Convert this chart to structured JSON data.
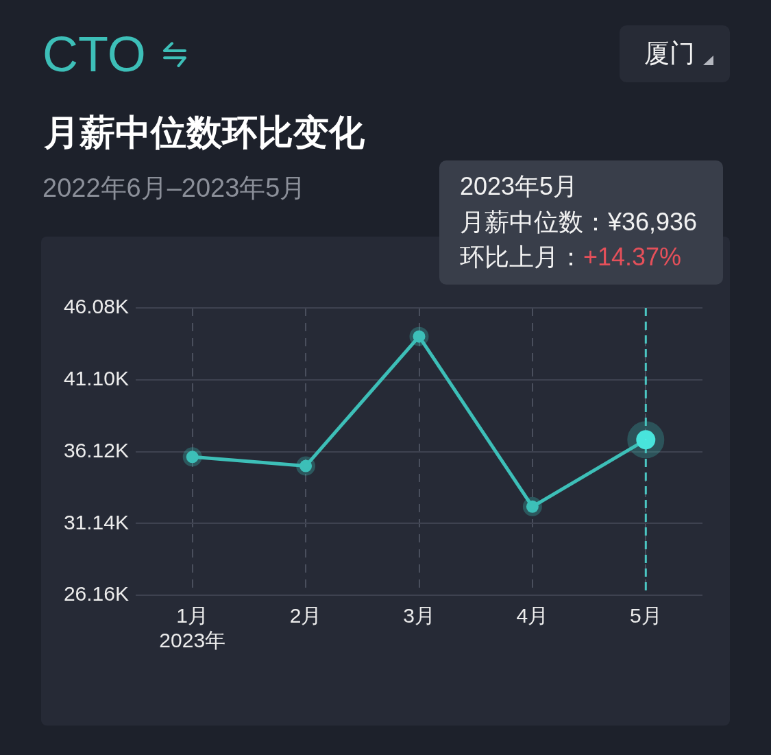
{
  "chart_data": {
    "type": "line",
    "title": "月薪中位数环比变化",
    "subtitle": "2022年6月–2023年5月",
    "categories": [
      "1月\n2023年",
      "2月",
      "3月",
      "4月",
      "5月"
    ],
    "series": [
      {
        "color": "#3dbfb8",
        "values": [
          35.75,
          35.12,
          44.1,
          32.3,
          36.936
        ]
      }
    ],
    "ylim": [
      26.16,
      46.08
    ],
    "yticks": [
      {
        "value": 26.16,
        "label": "26.16K"
      },
      {
        "value": 31.14,
        "label": "31.14K"
      },
      {
        "value": 36.12,
        "label": "36.12K"
      },
      {
        "value": 41.1,
        "label": "41.10K"
      },
      {
        "value": 46.08,
        "label": "46.08K"
      }
    ],
    "grid": true,
    "marker": "circle",
    "line_style": "solid",
    "ref_lines": [
      {
        "axis": "x",
        "value": "5月",
        "color": "#4cc7c3",
        "line_style": "dashed"
      }
    ],
    "annotations": [
      "CTO",
      "厦门",
      "2023年5月",
      "月薪中位数：¥36,936",
      "环比上月：",
      "+14.37%"
    ]
  }
}
